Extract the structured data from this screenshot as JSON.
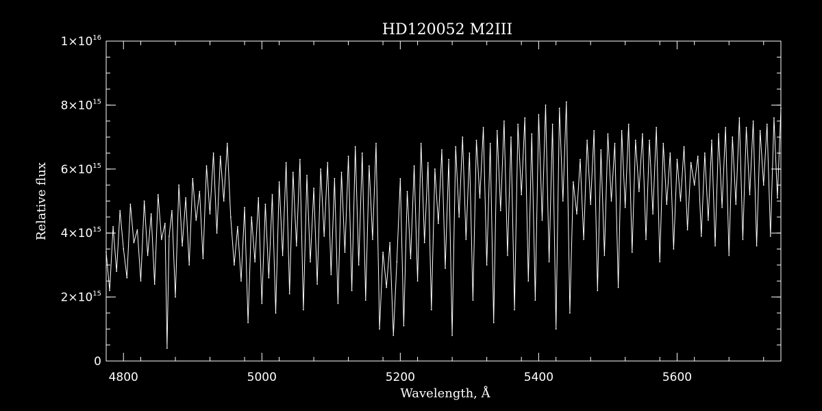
{
  "chart_data": {
    "type": "line",
    "title": "HD120052   M2III",
    "xlabel": "Wavelength, Å",
    "ylabel": "Relative flux",
    "xlim": [
      4775,
      5750
    ],
    "ylim": [
      0,
      1e+16
    ],
    "x_ticks": [
      {
        "value": 4800,
        "label": "4800"
      },
      {
        "value": 5000,
        "label": "5000"
      },
      {
        "value": 5200,
        "label": "5200"
      },
      {
        "value": 5400,
        "label": "5400"
      },
      {
        "value": 5600,
        "label": "5600"
      }
    ],
    "y_ticks": [
      {
        "value": 0,
        "mantissa": "0",
        "exponent": ""
      },
      {
        "value": 2000000000000000.0,
        "mantissa": "2×10",
        "exponent": "15"
      },
      {
        "value": 4000000000000000.0,
        "mantissa": "4×10",
        "exponent": "15"
      },
      {
        "value": 6000000000000000.0,
        "mantissa": "6×10",
        "exponent": "15"
      },
      {
        "value": 8000000000000000.0,
        "mantissa": "8×10",
        "exponent": "15"
      },
      {
        "value": 1e+16,
        "mantissa": "1×10",
        "exponent": "16"
      }
    ],
    "x_minor_step": 50,
    "y_minor_step": 500000000000000.0,
    "grid": false,
    "series": [
      {
        "color": "#ffffff",
        "points": [
          [
            4775,
            3400000000000000.0
          ],
          [
            4780,
            2200000000000000.0
          ],
          [
            4785,
            4200000000000000.0
          ],
          [
            4790,
            2800000000000000.0
          ],
          [
            4795,
            4700000000000000.0
          ],
          [
            4800,
            3500000000000000.0
          ],
          [
            4805,
            2600000000000000.0
          ],
          [
            4810,
            4900000000000000.0
          ],
          [
            4815,
            3700000000000000.0
          ],
          [
            4820,
            4100000000000000.0
          ],
          [
            4825,
            2500000000000000.0
          ],
          [
            4830,
            5000000000000000.0
          ],
          [
            4835,
            3300000000000000.0
          ],
          [
            4840,
            4600000000000000.0
          ],
          [
            4845,
            2400000000000000.0
          ],
          [
            4850,
            5200000000000000.0
          ],
          [
            4855,
            3800000000000000.0
          ],
          [
            4860,
            4300000000000000.0
          ],
          [
            4863,
            400000000000000.0
          ],
          [
            4866,
            3900000000000000.0
          ],
          [
            4870,
            4700000000000000.0
          ],
          [
            4875,
            2000000000000000.0
          ],
          [
            4880,
            5500000000000000.0
          ],
          [
            4885,
            3600000000000000.0
          ],
          [
            4890,
            5100000000000000.0
          ],
          [
            4895,
            3000000000000000.0
          ],
          [
            4900,
            5700000000000000.0
          ],
          [
            4905,
            4400000000000000.0
          ],
          [
            4910,
            5300000000000000.0
          ],
          [
            4915,
            3200000000000000.0
          ],
          [
            4920,
            6100000000000000.0
          ],
          [
            4925,
            4600000000000000.0
          ],
          [
            4930,
            6500000000000000.0
          ],
          [
            4935,
            4000000000000000.0
          ],
          [
            4940,
            6400000000000000.0
          ],
          [
            4945,
            5000000000000000.0
          ],
          [
            4950,
            6800000000000000.0
          ],
          [
            4955,
            4500000000000000.0
          ],
          [
            4960,
            3000000000000000.0
          ],
          [
            4965,
            4200000000000000.0
          ],
          [
            4970,
            2500000000000000.0
          ],
          [
            4975,
            4800000000000000.0
          ],
          [
            4980,
            1200000000000000.0
          ],
          [
            4985,
            4500000000000000.0
          ],
          [
            4990,
            3100000000000000.0
          ],
          [
            4995,
            5100000000000000.0
          ],
          [
            5000,
            1800000000000000.0
          ],
          [
            5005,
            4900000000000000.0
          ],
          [
            5010,
            2600000000000000.0
          ],
          [
            5015,
            5200000000000000.0
          ],
          [
            5020,
            1500000000000000.0
          ],
          [
            5025,
            5600000000000000.0
          ],
          [
            5030,
            3300000000000000.0
          ],
          [
            5035,
            6200000000000000.0
          ],
          [
            5040,
            2100000000000000.0
          ],
          [
            5045,
            5900000000000000.0
          ],
          [
            5050,
            3600000000000000.0
          ],
          [
            5055,
            6300000000000000.0
          ],
          [
            5060,
            1600000000000000.0
          ],
          [
            5065,
            5800000000000000.0
          ],
          [
            5070,
            3100000000000000.0
          ],
          [
            5075,
            5400000000000000.0
          ],
          [
            5080,
            2400000000000000.0
          ],
          [
            5085,
            6000000000000000.0
          ],
          [
            5090,
            3900000000000000.0
          ],
          [
            5095,
            6200000000000000.0
          ],
          [
            5100,
            2700000000000000.0
          ],
          [
            5105,
            5700000000000000.0
          ],
          [
            5110,
            1800000000000000.0
          ],
          [
            5115,
            5900000000000000.0
          ],
          [
            5120,
            3400000000000000.0
          ],
          [
            5125,
            6400000000000000.0
          ],
          [
            5130,
            2200000000000000.0
          ],
          [
            5135,
            6700000000000000.0
          ],
          [
            5140,
            3000000000000000.0
          ],
          [
            5145,
            6500000000000000.0
          ],
          [
            5150,
            1900000000000000.0
          ],
          [
            5155,
            6100000000000000.0
          ],
          [
            5160,
            3800000000000000.0
          ],
          [
            5165,
            6800000000000000.0
          ],
          [
            5170,
            1000000000000000.0
          ],
          [
            5175,
            3400000000000000.0
          ],
          [
            5180,
            2300000000000000.0
          ],
          [
            5185,
            3700000000000000.0
          ],
          [
            5190,
            800000000000000.0
          ],
          [
            5195,
            3100000000000000.0
          ],
          [
            5200,
            5700000000000000.0
          ],
          [
            5205,
            1100000000000000.0
          ],
          [
            5210,
            5300000000000000.0
          ],
          [
            5215,
            3200000000000000.0
          ],
          [
            5220,
            6100000000000000.0
          ],
          [
            5225,
            2500000000000000.0
          ],
          [
            5230,
            6800000000000000.0
          ],
          [
            5235,
            3700000000000000.0
          ],
          [
            5240,
            6200000000000000.0
          ],
          [
            5245,
            1600000000000000.0
          ],
          [
            5250,
            6000000000000000.0
          ],
          [
            5255,
            4300000000000000.0
          ],
          [
            5260,
            6600000000000000.0
          ],
          [
            5265,
            2900000000000000.0
          ],
          [
            5270,
            6300000000000000.0
          ],
          [
            5275,
            800000000000000.0
          ],
          [
            5280,
            6700000000000000.0
          ],
          [
            5285,
            4500000000000000.0
          ],
          [
            5290,
            7000000000000000.0
          ],
          [
            5295,
            3800000000000000.0
          ],
          [
            5300,
            6500000000000000.0
          ],
          [
            5305,
            1900000000000000.0
          ],
          [
            5310,
            6900000000000000.0
          ],
          [
            5315,
            5100000000000000.0
          ],
          [
            5320,
            7300000000000000.0
          ],
          [
            5325,
            3000000000000000.0
          ],
          [
            5330,
            6800000000000000.0
          ],
          [
            5335,
            1200000000000000.0
          ],
          [
            5340,
            7200000000000000.0
          ],
          [
            5345,
            4700000000000000.0
          ],
          [
            5350,
            7500000000000000.0
          ],
          [
            5355,
            3300000000000000.0
          ],
          [
            5360,
            7000000000000000.0
          ],
          [
            5365,
            1600000000000000.0
          ],
          [
            5370,
            7400000000000000.0
          ],
          [
            5375,
            5200000000000000.0
          ],
          [
            5380,
            7600000000000000.0
          ],
          [
            5385,
            2500000000000000.0
          ],
          [
            5390,
            7100000000000000.0
          ],
          [
            5395,
            1900000000000000.0
          ],
          [
            5400,
            7700000000000000.0
          ],
          [
            5405,
            4400000000000000.0
          ],
          [
            5410,
            8000000000000000.0
          ],
          [
            5415,
            3100000000000000.0
          ],
          [
            5420,
            7400000000000000.0
          ],
          [
            5425,
            1000000000000000.0
          ],
          [
            5430,
            7900000000000000.0
          ],
          [
            5435,
            5000000000000000.0
          ],
          [
            5440,
            8100000000000000.0
          ],
          [
            5445,
            1500000000000000.0
          ],
          [
            5450,
            5600000000000000.0
          ],
          [
            5455,
            4600000000000000.0
          ],
          [
            5460,
            6300000000000000.0
          ],
          [
            5465,
            3800000000000000.0
          ],
          [
            5470,
            6900000000000000.0
          ],
          [
            5475,
            4900000000000000.0
          ],
          [
            5480,
            7200000000000000.0
          ],
          [
            5485,
            2200000000000000.0
          ],
          [
            5490,
            6600000000000000.0
          ],
          [
            5495,
            3300000000000000.0
          ],
          [
            5500,
            7100000000000000.0
          ],
          [
            5505,
            5000000000000000.0
          ],
          [
            5510,
            6800000000000000.0
          ],
          [
            5515,
            2300000000000000.0
          ],
          [
            5520,
            7200000000000000.0
          ],
          [
            5525,
            4800000000000000.0
          ],
          [
            5530,
            7400000000000000.0
          ],
          [
            5535,
            3400000000000000.0
          ],
          [
            5540,
            6900000000000000.0
          ],
          [
            5545,
            5300000000000000.0
          ],
          [
            5550,
            7100000000000000.0
          ],
          [
            5555,
            3800000000000000.0
          ],
          [
            5560,
            6900000000000000.0
          ],
          [
            5565,
            4600000000000000.0
          ],
          [
            5570,
            7300000000000000.0
          ],
          [
            5575,
            3100000000000000.0
          ],
          [
            5580,
            6800000000000000.0
          ],
          [
            5585,
            4900000000000000.0
          ],
          [
            5590,
            6500000000000000.0
          ],
          [
            5595,
            3500000000000000.0
          ],
          [
            5600,
            6300000000000000.0
          ],
          [
            5605,
            5000000000000000.0
          ],
          [
            5610,
            6700000000000000.0
          ],
          [
            5615,
            4100000000000000.0
          ],
          [
            5620,
            6200000000000000.0
          ],
          [
            5625,
            5500000000000000.0
          ],
          [
            5630,
            6400000000000000.0
          ],
          [
            5635,
            3900000000000000.0
          ],
          [
            5640,
            6500000000000000.0
          ],
          [
            5645,
            4400000000000000.0
          ],
          [
            5650,
            6900000000000000.0
          ],
          [
            5655,
            3600000000000000.0
          ],
          [
            5660,
            7100000000000000.0
          ],
          [
            5665,
            4800000000000000.0
          ],
          [
            5670,
            7300000000000000.0
          ],
          [
            5675,
            3300000000000000.0
          ],
          [
            5680,
            7000000000000000.0
          ],
          [
            5685,
            4900000000000000.0
          ],
          [
            5690,
            7600000000000000.0
          ],
          [
            5695,
            3800000000000000.0
          ],
          [
            5700,
            7300000000000000.0
          ],
          [
            5705,
            5200000000000000.0
          ],
          [
            5710,
            7500000000000000.0
          ],
          [
            5715,
            3600000000000000.0
          ],
          [
            5720,
            7200000000000000.0
          ],
          [
            5725,
            5500000000000000.0
          ],
          [
            5730,
            7400000000000000.0
          ],
          [
            5735,
            3900000000000000.0
          ],
          [
            5740,
            7600000000000000.0
          ],
          [
            5745,
            5100000000000000.0
          ],
          [
            5750,
            7900000000000000.0
          ]
        ]
      }
    ]
  }
}
